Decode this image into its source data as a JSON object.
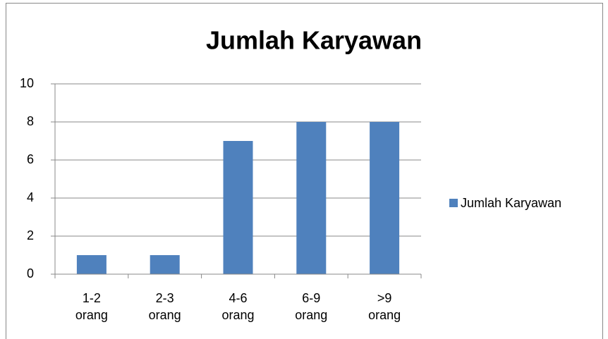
{
  "chart_data": {
    "type": "bar",
    "title": "Jumlah Karyawan",
    "categories": [
      "1-2 orang",
      "2-3 orang",
      "4-6 orang",
      "6-9 orang",
      ">9 orang"
    ],
    "series": [
      {
        "name": "Jumlah Karyawan",
        "color": "#4f81bd",
        "values": [
          1,
          1,
          7,
          8,
          8
        ]
      }
    ],
    "ylim": [
      0,
      10
    ],
    "yticks": [
      0,
      2,
      4,
      6,
      8,
      10
    ],
    "grid": true,
    "legend": "right"
  }
}
